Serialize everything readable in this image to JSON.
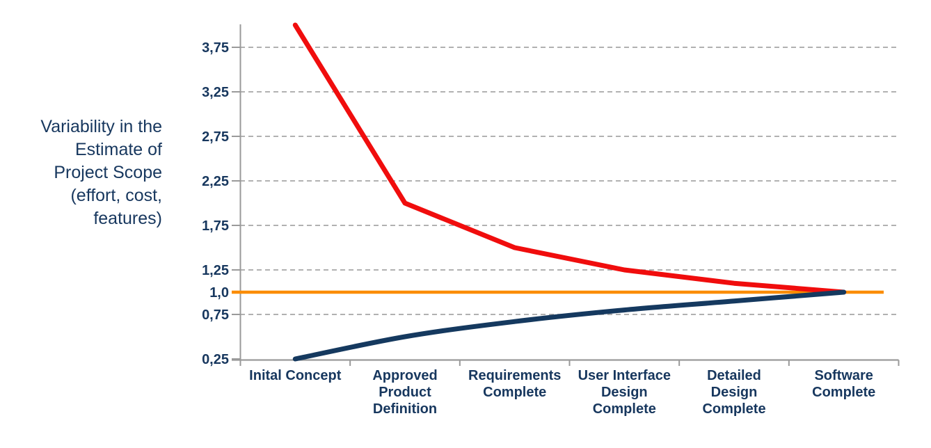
{
  "figure": {
    "background": "#ffffff",
    "y_axis_title_lines": [
      "Variability in the",
      "Estimate of",
      "Project Scope",
      "(effort, cost,",
      "features)"
    ]
  },
  "chart_data": {
    "type": "line",
    "title": "",
    "ylabel": "Variability in the Estimate of Project Scope (effort, cost, features)",
    "xlabel": "",
    "categories": [
      "Inital Concept",
      "Approved Product Definition",
      "Requirements Complete",
      "User Interface Design Complete",
      "Detailed Design Complete",
      "Software Complete"
    ],
    "category_label_lines": [
      [
        "Inital Concept"
      ],
      [
        "Approved",
        "Product",
        "Definition"
      ],
      [
        "Requirements",
        "Complete"
      ],
      [
        "User Interface",
        "Design",
        "Complete"
      ],
      [
        "Detailed",
        "Design",
        "Complete"
      ],
      [
        "Software",
        "Complete"
      ]
    ],
    "series": [
      {
        "name": "upper-estimate-bound",
        "color": "#f00d0d",
        "stroke_width": 7,
        "values": [
          4.0,
          2.0,
          1.5,
          1.25,
          1.1,
          1.0
        ]
      },
      {
        "name": "lower-estimate-bound",
        "color": "#15395f",
        "stroke_width": 7,
        "values": [
          0.25,
          0.5,
          0.67,
          0.8,
          0.9,
          1.0
        ]
      }
    ],
    "reference_line": {
      "name": "convergence-baseline",
      "value": 1.0,
      "color": "#fb8c00",
      "stroke_width": 4.5
    },
    "ylim": [
      0.25,
      4.0
    ],
    "y_ticks": [
      {
        "value": 3.75,
        "label": "3,75"
      },
      {
        "value": 3.25,
        "label": "3,25"
      },
      {
        "value": 2.75,
        "label": "2,75"
      },
      {
        "value": 2.25,
        "label": "2,25"
      },
      {
        "value": 1.75,
        "label": "1,75"
      },
      {
        "value": 1.25,
        "label": "1,25"
      },
      {
        "value": 1.0,
        "label": "1,0"
      },
      {
        "value": 0.75,
        "label": "0,75"
      },
      {
        "value": 0.25,
        "label": "0,25"
      }
    ],
    "gridline_values": [
      3.75,
      3.25,
      2.75,
      2.25,
      1.75,
      1.25,
      0.75
    ],
    "grid": "dashed-horizontal",
    "legend": "none",
    "colors": {
      "label_text": "#17375e",
      "gridline": "#a6a6a6",
      "axis": "#9a9a9a"
    }
  }
}
